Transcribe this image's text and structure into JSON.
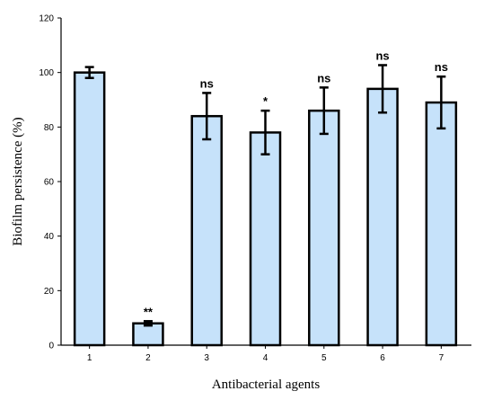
{
  "chart_data": {
    "type": "bar",
    "categories": [
      "1",
      "2",
      "3",
      "4",
      "5",
      "6",
      "7"
    ],
    "values": [
      100,
      8,
      84,
      78,
      86,
      94,
      89
    ],
    "errors": [
      2,
      0.8,
      8.5,
      8,
      8.5,
      8.7,
      9.5
    ],
    "significance": [
      "",
      "**",
      "ns",
      "*",
      "ns",
      "ns",
      "ns"
    ],
    "xlabel": "Antibacterial agents",
    "ylabel": "Biofilm persistence (%)",
    "ylim": [
      0,
      120
    ],
    "yticks": [
      0,
      20,
      40,
      60,
      80,
      100,
      120
    ],
    "grid": false,
    "legend": "none",
    "colors": {
      "bar_fill": "#c6e2fa",
      "bar_stroke": "#000000",
      "error_bar": "#000000"
    }
  }
}
